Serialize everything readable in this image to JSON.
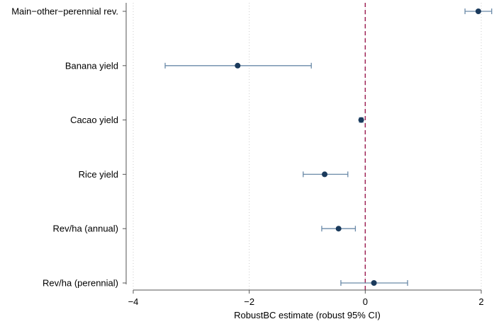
{
  "chart_data": {
    "type": "scatter",
    "subtype": "coefficient-plot-with-confidence-intervals",
    "title": "",
    "xlabel": "RobustBC estimate (robust 95% CI)",
    "ylabel": "",
    "xlim": [
      -4.1,
      2.1
    ],
    "xticks": [
      -4,
      -2,
      0,
      2
    ],
    "xtick_labels": [
      "−4",
      "−2",
      "0",
      "2"
    ],
    "grid": "vertical dotted at x ticks",
    "reference_line": {
      "x": 0,
      "style": "dashed",
      "color": "#9b1b4f"
    },
    "categories": [
      "Main−other−perennial rev.",
      "Banana yield",
      "Cacao yield",
      "Rice yield",
      "Rev/ha (annual)",
      "Rev/ha (perennial)"
    ],
    "estimates": [
      1.95,
      -2.2,
      -0.07,
      -0.7,
      -0.46,
      0.15
    ],
    "ci_low": [
      1.72,
      -3.45,
      -0.1,
      -1.07,
      -0.75,
      -0.42
    ],
    "ci_high": [
      2.18,
      -0.93,
      -0.04,
      -0.3,
      -0.17,
      0.73
    ]
  },
  "colors": {
    "point": "#1a3a5c",
    "ci": "#6a8aa8",
    "reference": "#9b1b4f",
    "axis": "#555555",
    "grid": "#cccccc"
  }
}
